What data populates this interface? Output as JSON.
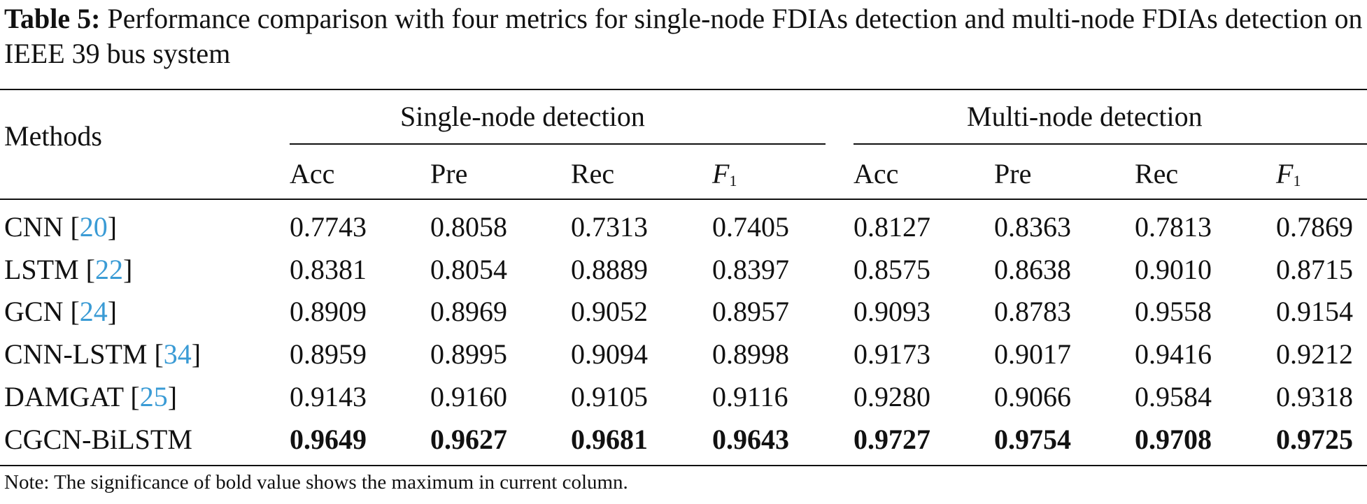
{
  "caption": {
    "label": "Table 5:",
    "text": " Performance comparison with four metrics for single-node FDIAs detection and multi-node FDIAs detection on IEEE 39 bus system"
  },
  "header": {
    "methods": "Methods",
    "groups": [
      "Single-node detection",
      "Multi-node detection"
    ],
    "metrics": [
      "Acc",
      "Pre",
      "Rec",
      "F",
      "Acc",
      "Pre",
      "Rec",
      "F"
    ],
    "f1_subscript": "1"
  },
  "rows": [
    {
      "method": "CNN [",
      "ref": "20",
      "close": "]",
      "values": [
        "0.7743",
        "0.8058",
        "0.7313",
        "0.7405",
        "0.8127",
        "0.8363",
        "0.7813",
        "0.7869"
      ],
      "bold": false
    },
    {
      "method": "LSTM [",
      "ref": "22",
      "close": "]",
      "values": [
        "0.8381",
        "0.8054",
        "0.8889",
        "0.8397",
        "0.8575",
        "0.8638",
        "0.9010",
        "0.8715"
      ],
      "bold": false
    },
    {
      "method": "GCN [",
      "ref": "24",
      "close": "]",
      "values": [
        "0.8909",
        "0.8969",
        "0.9052",
        "0.8957",
        "0.9093",
        "0.8783",
        "0.9558",
        "0.9154"
      ],
      "bold": false
    },
    {
      "method": "CNN-LSTM [",
      "ref": "34",
      "close": "]",
      "values": [
        "0.8959",
        "0.8995",
        "0.9094",
        "0.8998",
        "0.9173",
        "0.9017",
        "0.9416",
        "0.9212"
      ],
      "bold": false
    },
    {
      "method": "DAMGAT [",
      "ref": "25",
      "close": "]",
      "values": [
        "0.9143",
        "0.9160",
        "0.9105",
        "0.9116",
        "0.9280",
        "0.9066",
        "0.9584",
        "0.9318"
      ],
      "bold": false
    },
    {
      "method": "CGCN-BiLSTM",
      "ref": "",
      "close": "",
      "values": [
        "0.9649",
        "0.9627",
        "0.9681",
        "0.9643",
        "0.9727",
        "0.9754",
        "0.9708",
        "0.9725"
      ],
      "bold": true
    }
  ],
  "note": "Note: The significance of bold value shows the maximum in current column."
}
